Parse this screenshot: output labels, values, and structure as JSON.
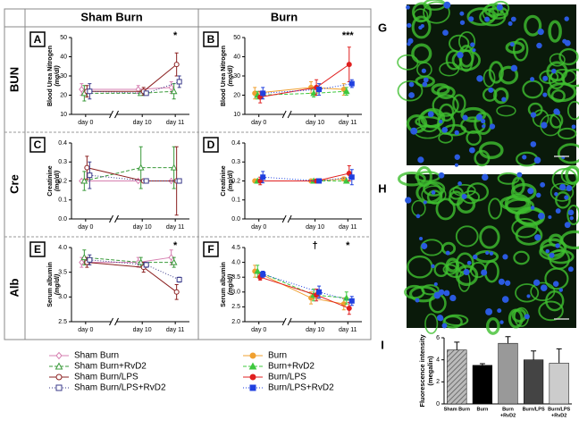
{
  "headers": [
    "Sham Burn",
    "Burn"
  ],
  "rows": [
    "BUN",
    "Cre",
    "Alb"
  ],
  "image_labels": [
    "G",
    "H"
  ],
  "chart_data": [
    {
      "type": "line",
      "panel": "A",
      "ylabel": "Blood Urea Nitrogen",
      "yunit": "(mg/dl)",
      "categories": [
        "day 0",
        "day 10",
        "day 11"
      ],
      "ylim": [
        10,
        50
      ],
      "yticks": [
        10,
        20,
        30,
        40,
        50
      ],
      "annotations": [
        {
          "text": "*",
          "x": "day 11"
        }
      ],
      "series": [
        {
          "name": "Sham Burn",
          "color": "#d67fb0",
          "marker": "diamond",
          "filled": false,
          "dash": "none",
          "values": [
            23,
            23,
            24
          ],
          "errors": [
            3,
            2,
            3
          ]
        },
        {
          "name": "Sham Burn+RvD2",
          "color": "#3a9a3a",
          "marker": "triangle",
          "filled": false,
          "dash": "4 2",
          "values": [
            21,
            21,
            22
          ],
          "errors": [
            4,
            1,
            4
          ]
        },
        {
          "name": "Sham Burn/LPS",
          "color": "#8b2020",
          "marker": "circle",
          "filled": false,
          "dash": "none",
          "values": [
            22,
            22,
            36
          ],
          "errors": [
            3,
            2,
            6
          ]
        },
        {
          "name": "Sham Burn/LPS+RvD2",
          "color": "#3a3a8a",
          "marker": "square",
          "filled": false,
          "dash": "1 2",
          "values": [
            22,
            21,
            27
          ],
          "errors": [
            4,
            1,
            3
          ]
        }
      ]
    },
    {
      "type": "line",
      "panel": "B",
      "ylabel": "Blood Urea Nitrogen",
      "yunit": "(mg/dl)",
      "categories": [
        "day 0",
        "day 10",
        "day 11"
      ],
      "ylim": [
        10,
        50
      ],
      "yticks": [
        10,
        20,
        30,
        40,
        50
      ],
      "annotations": [
        {
          "text": "***",
          "x": "day 11"
        }
      ],
      "series": [
        {
          "name": "Burn",
          "color": "#f0a030",
          "marker": "circle",
          "filled": true,
          "dash": "none",
          "values": [
            21,
            24,
            23
          ],
          "errors": [
            3,
            3,
            3
          ]
        },
        {
          "name": "Burn+RvD2",
          "color": "#3ec83e",
          "marker": "triangle",
          "filled": true,
          "dash": "4 2",
          "values": [
            20,
            21,
            22
          ],
          "errors": [
            2,
            2,
            2
          ]
        },
        {
          "name": "Burn/LPS",
          "color": "#e02020",
          "marker": "circle",
          "filled": true,
          "dash": "none",
          "values": [
            19,
            24,
            36
          ],
          "errors": [
            3,
            4,
            9
          ]
        },
        {
          "name": "Burn/LPS+RvD2",
          "color": "#2040e0",
          "marker": "square",
          "filled": true,
          "dash": "1 2",
          "values": [
            21,
            23,
            26
          ],
          "errors": [
            3,
            3,
            2
          ]
        }
      ]
    },
    {
      "type": "line",
      "panel": "C",
      "ylabel": "Creatinine",
      "yunit": "(mg/dl)",
      "categories": [
        "day 0",
        "day 10",
        "day 11"
      ],
      "ylim": [
        0,
        0.4
      ],
      "yticks": [
        {
          "value": 0,
          "label": "0.0"
        },
        0.1,
        0.2,
        0.3,
        0.4
      ],
      "annotations": [],
      "series": [
        {
          "name": "Sham Burn",
          "color": "#d67fb0",
          "marker": "diamond",
          "filled": false,
          "dash": "none",
          "values": [
            0.2,
            0.2,
            0.2
          ],
          "errors": [
            0,
            0,
            0
          ]
        },
        {
          "name": "Sham Burn+RvD2",
          "color": "#3a9a3a",
          "marker": "triangle",
          "filled": false,
          "dash": "4 2",
          "values": [
            0.2,
            0.27,
            0.27
          ],
          "errors": [
            0.05,
            0.11,
            0.11
          ]
        },
        {
          "name": "Sham Burn/LPS",
          "color": "#8b2020",
          "marker": "circle",
          "filled": false,
          "dash": "none",
          "values": [
            0.27,
            0.2,
            0.2
          ],
          "errors": [
            0.06,
            0,
            0.18
          ]
        },
        {
          "name": "Sham Burn/LPS+RvD2",
          "color": "#3a3a8a",
          "marker": "square",
          "filled": false,
          "dash": "1 2",
          "values": [
            0.23,
            0.2,
            0.2
          ],
          "errors": [
            0.07,
            0,
            0
          ]
        }
      ]
    },
    {
      "type": "line",
      "panel": "D",
      "ylabel": "Creatinine",
      "yunit": "(mg/dl)",
      "categories": [
        "day 0",
        "day 10",
        "day 11"
      ],
      "ylim": [
        0,
        0.4
      ],
      "yticks": [
        {
          "value": 0,
          "label": "0.0"
        },
        0.1,
        0.2,
        0.3,
        0.4
      ],
      "annotations": [],
      "series": [
        {
          "name": "Burn",
          "color": "#f0a030",
          "marker": "circle",
          "filled": true,
          "dash": "none",
          "values": [
            0.2,
            0.2,
            0.21
          ],
          "errors": [
            0,
            0,
            0.01
          ]
        },
        {
          "name": "Burn+RvD2",
          "color": "#3ec83e",
          "marker": "triangle",
          "filled": true,
          "dash": "4 2",
          "values": [
            0.2,
            0.2,
            0.2
          ],
          "errors": [
            0,
            0,
            0
          ]
        },
        {
          "name": "Burn/LPS",
          "color": "#e02020",
          "marker": "circle",
          "filled": true,
          "dash": "none",
          "values": [
            0.2,
            0.2,
            0.24
          ],
          "errors": [
            0.02,
            0,
            0.04
          ]
        },
        {
          "name": "Burn/LPS+RvD2",
          "color": "#2040e0",
          "marker": "square",
          "filled": true,
          "dash": "1 2",
          "values": [
            0.22,
            0.2,
            0.22
          ],
          "errors": [
            0.03,
            0,
            0.04
          ]
        }
      ]
    },
    {
      "type": "line",
      "panel": "E",
      "ylabel": "Serum albumin",
      "yunit": "(mg/dl)",
      "categories": [
        "day 0",
        "day 10",
        "day 11"
      ],
      "ylim": [
        2.5,
        4.0
      ],
      "yticks": [
        2.5,
        {
          "value": 3,
          "label": "3.0"
        },
        3.5,
        {
          "value": 4,
          "label": "4.0"
        }
      ],
      "annotations": [
        {
          "text": "*",
          "x": "day 11"
        }
      ],
      "series": [
        {
          "name": "Sham Burn",
          "color": "#d67fb0",
          "marker": "diamond",
          "filled": false,
          "dash": "none",
          "values": [
            3.7,
            3.7,
            3.8
          ],
          "errors": [
            0.1,
            0.1,
            0.15
          ]
        },
        {
          "name": "Sham Burn+RvD2",
          "color": "#3a9a3a",
          "marker": "triangle",
          "filled": false,
          "dash": "4 2",
          "values": [
            3.8,
            3.7,
            3.7
          ],
          "errors": [
            0.15,
            0.1,
            0.1
          ]
        },
        {
          "name": "Sham Burn/LPS",
          "color": "#8b2020",
          "marker": "circle",
          "filled": false,
          "dash": "none",
          "values": [
            3.7,
            3.6,
            3.1
          ],
          "errors": [
            0.1,
            0.1,
            0.15
          ]
        },
        {
          "name": "Sham Burn/LPS+RvD2",
          "color": "#3a3a8a",
          "marker": "square",
          "filled": false,
          "dash": "1 2",
          "values": [
            3.75,
            3.65,
            3.35
          ],
          "errors": [
            0.1,
            0.05,
            0.05
          ]
        }
      ]
    },
    {
      "type": "line",
      "panel": "F",
      "ylabel": "Serum albumin",
      "yunit": "(mg/dl)",
      "categories": [
        "day 0",
        "day 10",
        "day 11"
      ],
      "ylim": [
        2.0,
        4.5
      ],
      "yticks": [
        {
          "value": 2,
          "label": "2.0"
        },
        2.5,
        {
          "value": 3,
          "label": "3.0"
        },
        3.5,
        {
          "value": 4,
          "label": "4.0"
        },
        4.5
      ],
      "annotations": [
        {
          "text": "†",
          "x": "day 10"
        },
        {
          "text": "*",
          "x": "day 11"
        }
      ],
      "series": [
        {
          "name": "Burn",
          "color": "#f0a030",
          "marker": "circle",
          "filled": true,
          "dash": "none",
          "values": [
            3.7,
            2.8,
            2.6
          ],
          "errors": [
            0.2,
            0.2,
            0.2
          ]
        },
        {
          "name": "Burn+RvD2",
          "color": "#3ec83e",
          "marker": "triangle",
          "filled": true,
          "dash": "4 2",
          "values": [
            3.7,
            2.9,
            2.8
          ],
          "errors": [
            0.2,
            0.2,
            0.2
          ]
        },
        {
          "name": "Burn/LPS",
          "color": "#e02020",
          "marker": "circle",
          "filled": true,
          "dash": "none",
          "values": [
            3.5,
            2.9,
            2.45
          ],
          "errors": [
            0.1,
            0.2,
            0.2
          ]
        },
        {
          "name": "Burn/LPS+RvD2",
          "color": "#2040e0",
          "marker": "square",
          "filled": true,
          "dash": "1 2",
          "values": [
            3.6,
            3.0,
            2.7
          ],
          "errors": [
            0.1,
            0.2,
            0.15
          ]
        }
      ]
    },
    {
      "type": "bar",
      "panel": "I",
      "ylabel": "Fluorescence intensity",
      "yunit": "(megalin)",
      "categories": [
        [
          "Sham Burn"
        ],
        [
          "Burn"
        ],
        [
          "Burn",
          "+RvD2"
        ],
        [
          "Burn/LPS"
        ],
        [
          "Burn/LPS",
          "+RvD2"
        ]
      ],
      "values": [
        4.9,
        3.5,
        5.5,
        4.0,
        3.7
      ],
      "errors": [
        0.7,
        0.15,
        0.6,
        0.8,
        1.3
      ],
      "colors": [
        "#8a8a8a",
        "#000000",
        "#999999",
        "#444444",
        "#cccccc"
      ],
      "hatch": [
        true,
        false,
        false,
        false,
        false
      ],
      "ylim": [
        0,
        6
      ],
      "yticks": [
        0,
        2,
        4,
        6
      ]
    }
  ]
}
